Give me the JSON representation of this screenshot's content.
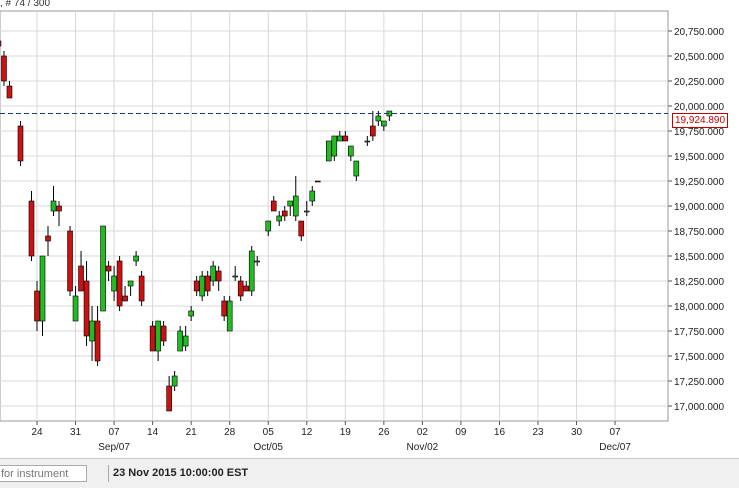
{
  "header": {
    "label": ", # 74 / 300"
  },
  "current_price_label": "19,924.890",
  "footer": {
    "search_placeholder": "for instrument",
    "timestamp": "23 Nov 2015 10:00:00 EST"
  },
  "colors": {
    "up": "#22bb22",
    "down": "#cc1111",
    "grid": "#d8d8d8",
    "price_line": "#1a3a8a"
  },
  "chart_data": {
    "type": "candlestick",
    "ylim": [
      16850,
      20950
    ],
    "y_ticks": [
      17000,
      17250,
      17500,
      17750,
      18000,
      18250,
      18500,
      18750,
      19000,
      19250,
      19500,
      19750,
      20000,
      20250,
      20500,
      20750
    ],
    "y_tick_labels": [
      "17,000.000",
      "17,250.000",
      "17,500.000",
      "17,750.000",
      "18,000.000",
      "18,250.000",
      "18,500.000",
      "18,750.000",
      "19,000.000",
      "19,250.000",
      "19,500.000",
      "19,750.000",
      "20,000.000",
      "20,250.000",
      "20,500.000",
      "20,750.000"
    ],
    "x_ticks": [
      {
        "label": "24",
        "day": 24
      },
      {
        "label": "31",
        "day": 31
      },
      {
        "label": "07",
        "day": 38
      },
      {
        "label": "14",
        "day": 45
      },
      {
        "label": "21",
        "day": 52
      },
      {
        "label": "28",
        "day": 59
      },
      {
        "label": "05",
        "day": 66
      },
      {
        "label": "12",
        "day": 73
      },
      {
        "label": "19",
        "day": 80
      },
      {
        "label": "26",
        "day": 87
      },
      {
        "label": "02",
        "day": 94
      },
      {
        "label": "09",
        "day": 101
      },
      {
        "label": "16",
        "day": 108
      },
      {
        "label": "23",
        "day": 115
      },
      {
        "label": "30",
        "day": 122
      },
      {
        "label": "07",
        "day": 129
      }
    ],
    "x_month_labels": [
      {
        "label": "Sep/07",
        "day": 38
      },
      {
        "label": "Oct/05",
        "day": 66
      },
      {
        "label": "Nov/02",
        "day": 94
      },
      {
        "label": "Dec/07",
        "day": 129
      }
    ],
    "current_price": 19924.89,
    "candles": [
      {
        "d": 17,
        "o": 20650,
        "h": 20700,
        "l": 20550,
        "c": 20600
      },
      {
        "d": 18,
        "o": 20500,
        "h": 20550,
        "l": 20200,
        "c": 20250
      },
      {
        "d": 19,
        "o": 20200,
        "h": 20250,
        "l": 20100,
        "c": 20080
      },
      {
        "d": 21,
        "o": 19800,
        "h": 19850,
        "l": 19400,
        "c": 19450
      },
      {
        "d": 23,
        "o": 19050,
        "h": 19150,
        "l": 18450,
        "c": 18500
      },
      {
        "d": 24,
        "o": 18150,
        "h": 18250,
        "l": 17750,
        "c": 17850
      },
      {
        "d": 25,
        "o": 17850,
        "h": 18500,
        "l": 17700,
        "c": 18500
      },
      {
        "d": 26,
        "o": 18700,
        "h": 18800,
        "l": 18500,
        "c": 18650
      },
      {
        "d": 27,
        "o": 18950,
        "h": 19200,
        "l": 18900,
        "c": 19050
      },
      {
        "d": 28,
        "o": 19000,
        "h": 19050,
        "l": 18800,
        "c": 18950
      },
      {
        "d": 30,
        "o": 18750,
        "h": 18800,
        "l": 18100,
        "c": 18150
      },
      {
        "d": 31,
        "o": 17850,
        "h": 18200,
        "l": 17850,
        "c": 18100
      },
      {
        "d": 32,
        "o": 18400,
        "h": 18550,
        "l": 18150,
        "c": 18150
      },
      {
        "d": 33,
        "o": 18250,
        "h": 18450,
        "l": 17600,
        "c": 17700
      },
      {
        "d": 34,
        "o": 17650,
        "h": 18000,
        "l": 17450,
        "c": 17850
      },
      {
        "d": 35,
        "o": 17850,
        "h": 18000,
        "l": 17400,
        "c": 17450
      },
      {
        "d": 36,
        "o": 17950,
        "h": 18800,
        "l": 17950,
        "c": 18800
      },
      {
        "d": 37,
        "o": 18400,
        "h": 18450,
        "l": 18250,
        "c": 18350
      },
      {
        "d": 38,
        "o": 18150,
        "h": 18400,
        "l": 18050,
        "c": 18300
      },
      {
        "d": 39,
        "o": 18450,
        "h": 18500,
        "l": 17950,
        "c": 18000
      },
      {
        "d": 40,
        "o": 18100,
        "h": 18200,
        "l": 18050,
        "c": 18050
      },
      {
        "d": 41,
        "o": 18200,
        "h": 18250,
        "l": 18100,
        "c": 18250
      },
      {
        "d": 42,
        "o": 18450,
        "h": 18550,
        "l": 18400,
        "c": 18500
      },
      {
        "d": 43,
        "o": 18300,
        "h": 18350,
        "l": 18000,
        "c": 18050
      },
      {
        "d": 45,
        "o": 17800,
        "h": 17850,
        "l": 17550,
        "c": 17550
      },
      {
        "d": 46,
        "o": 17550,
        "h": 17850,
        "l": 17450,
        "c": 17850
      },
      {
        "d": 47,
        "o": 17800,
        "h": 17850,
        "l": 17600,
        "c": 17650
      },
      {
        "d": 48,
        "o": 17200,
        "h": 17300,
        "l": 16950,
        "c": 16950
      },
      {
        "d": 49,
        "o": 17200,
        "h": 17350,
        "l": 17150,
        "c": 17300
      },
      {
        "d": 50,
        "o": 17550,
        "h": 17800,
        "l": 17550,
        "c": 17750
      },
      {
        "d": 51,
        "o": 17600,
        "h": 17800,
        "l": 17550,
        "c": 17700
      },
      {
        "d": 52,
        "o": 17900,
        "h": 18000,
        "l": 17850,
        "c": 17950
      },
      {
        "d": 53,
        "o": 18250,
        "h": 18300,
        "l": 18100,
        "c": 18150
      },
      {
        "d": 54,
        "o": 18100,
        "h": 18350,
        "l": 18050,
        "c": 18300
      },
      {
        "d": 55,
        "o": 18300,
        "h": 18350,
        "l": 18100,
        "c": 18150
      },
      {
        "d": 56,
        "o": 18250,
        "h": 18450,
        "l": 18200,
        "c": 18400
      },
      {
        "d": 57,
        "o": 18350,
        "h": 18400,
        "l": 18150,
        "c": 18250
      },
      {
        "d": 58,
        "o": 18050,
        "h": 18100,
        "l": 17850,
        "c": 17900
      },
      {
        "d": 59,
        "o": 17750,
        "h": 18100,
        "l": 17750,
        "c": 18050
      },
      {
        "d": 60,
        "o": 18300,
        "h": 18400,
        "l": 18250,
        "c": 18300
      },
      {
        "d": 61,
        "o": 18250,
        "h": 18300,
        "l": 18050,
        "c": 18100
      },
      {
        "d": 62,
        "o": 18200,
        "h": 18250,
        "l": 18150,
        "c": 18150
      },
      {
        "d": 63,
        "o": 18150,
        "h": 18600,
        "l": 18100,
        "c": 18550
      },
      {
        "d": 64,
        "o": 18450,
        "h": 18500,
        "l": 18400,
        "c": 18450
      },
      {
        "d": 66,
        "o": 18750,
        "h": 18850,
        "l": 18700,
        "c": 18850
      },
      {
        "d": 67,
        "o": 19050,
        "h": 19100,
        "l": 18950,
        "c": 18950
      },
      {
        "d": 68,
        "o": 18850,
        "h": 18950,
        "l": 18800,
        "c": 18900
      },
      {
        "d": 69,
        "o": 18950,
        "h": 19000,
        "l": 18850,
        "c": 18900
      },
      {
        "d": 70,
        "o": 19000,
        "h": 19050,
        "l": 18900,
        "c": 19050
      },
      {
        "d": 71,
        "o": 18900,
        "h": 19300,
        "l": 18850,
        "c": 19100
      },
      {
        "d": 72,
        "o": 18850,
        "h": 18850,
        "l": 18650,
        "c": 18700
      },
      {
        "d": 73,
        "o": 18950,
        "h": 19050,
        "l": 18900,
        "c": 18950
      },
      {
        "d": 74,
        "o": 19050,
        "h": 19200,
        "l": 19000,
        "c": 19150
      },
      {
        "d": 75,
        "o": 19250,
        "h": 19250,
        "l": 19240,
        "c": 19240
      },
      {
        "d": 77,
        "o": 19450,
        "h": 19650,
        "l": 19450,
        "c": 19650
      },
      {
        "d": 78,
        "o": 19500,
        "h": 19700,
        "l": 19450,
        "c": 19700
      },
      {
        "d": 79,
        "o": 19650,
        "h": 19750,
        "l": 19650,
        "c": 19700
      },
      {
        "d": 80,
        "o": 19700,
        "h": 19750,
        "l": 19650,
        "c": 19650
      },
      {
        "d": 81,
        "o": 19500,
        "h": 19600,
        "l": 19450,
        "c": 19600
      },
      {
        "d": 82,
        "o": 19300,
        "h": 19450,
        "l": 19250,
        "c": 19450
      },
      {
        "d": 84,
        "o": 19650,
        "h": 19700,
        "l": 19600,
        "c": 19650
      },
      {
        "d": 85,
        "o": 19800,
        "h": 19950,
        "l": 19650,
        "c": 19700
      },
      {
        "d": 86,
        "o": 19850,
        "h": 19950,
        "l": 19800,
        "c": 19900
      },
      {
        "d": 87,
        "o": 19800,
        "h": 19850,
        "l": 19750,
        "c": 19850
      },
      {
        "d": 88,
        "o": 19900,
        "h": 19950,
        "l": 19850,
        "c": 19950
      }
    ]
  }
}
